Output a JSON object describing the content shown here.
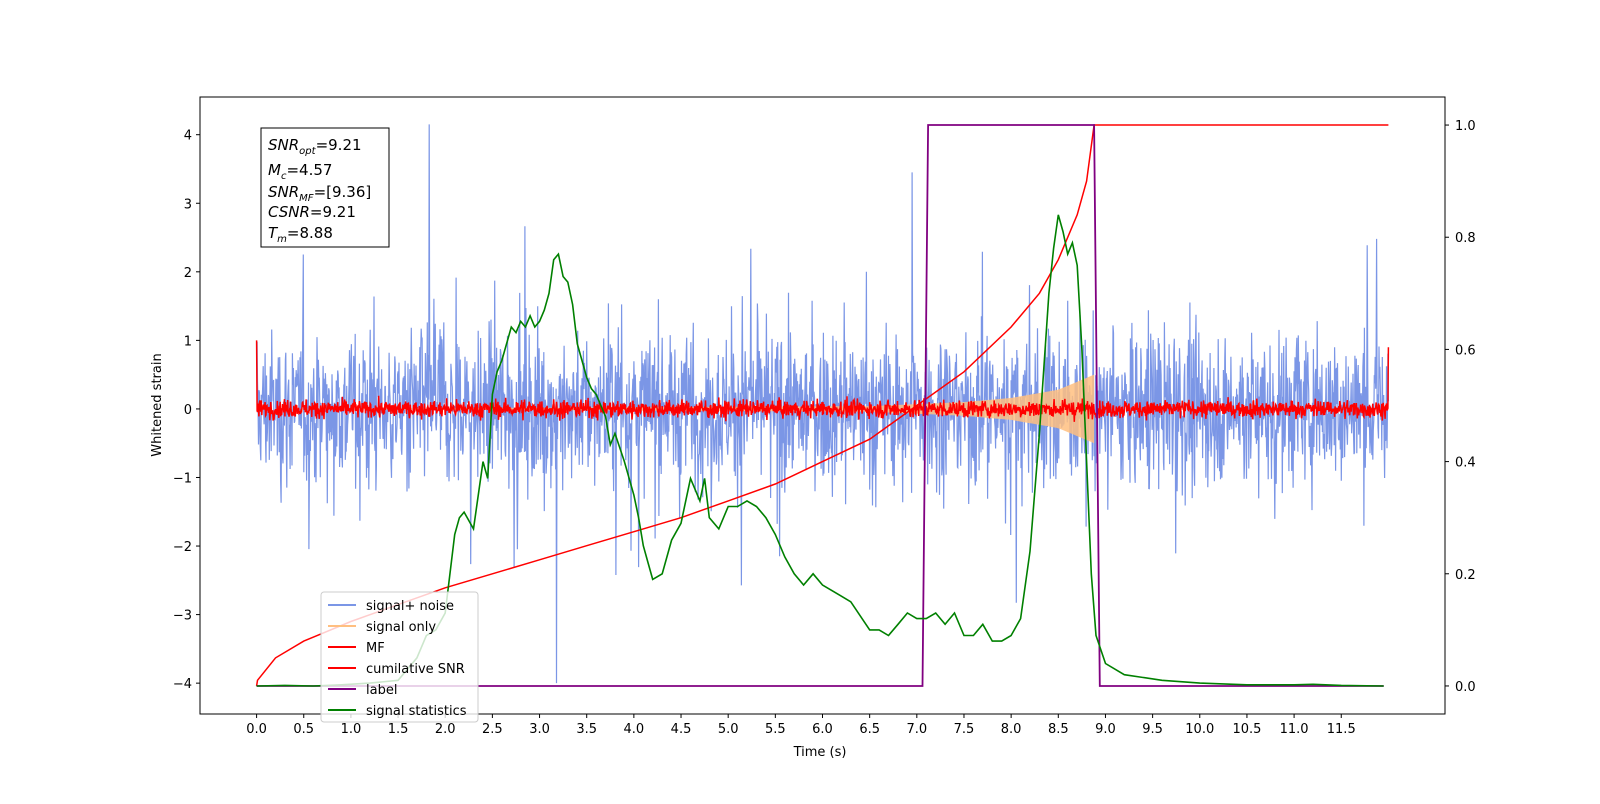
{
  "chart_data": {
    "type": "line",
    "xlabel": "Time (s)",
    "ylabel": "Whitened strain",
    "xlim": [
      -0.6,
      12.6
    ],
    "ylim": [
      -4.45,
      4.55
    ],
    "ylim_right": [
      -0.05,
      1.05
    ],
    "x_ticks": [
      0.0,
      0.5,
      1.0,
      1.5,
      2.0,
      2.5,
      3.0,
      3.5,
      4.0,
      4.5,
      5.0,
      5.5,
      6.0,
      6.5,
      7.0,
      7.5,
      8.0,
      8.5,
      9.0,
      9.5,
      10.0,
      10.5,
      11.0,
      11.5
    ],
    "x_tick_labels": [
      "0.0",
      "0.5",
      "1.0",
      "1.5",
      "2.0",
      "2.5",
      "3.0",
      "3.5",
      "4.0",
      "4.5",
      "5.0",
      "5.5",
      "6.0",
      "6.5",
      "7.0",
      "7.5",
      "8.0",
      "8.5",
      "9.0",
      "9.5",
      "10.0",
      "10.5",
      "11.0",
      "11.5"
    ],
    "y_ticks": [
      -4,
      -3,
      -2,
      -1,
      0,
      1,
      2,
      3,
      4
    ],
    "y_tick_labels": [
      "−4",
      "−3",
      "−2",
      "−1",
      "0",
      "1",
      "2",
      "3",
      "4"
    ],
    "y_right_ticks": [
      0.0,
      0.2,
      0.4,
      0.6,
      0.8,
      1.0
    ],
    "y_right_tick_labels": [
      "0.0",
      "0.2",
      "0.4",
      "0.6",
      "0.8",
      "1.0"
    ],
    "legend_position": "lower-left",
    "grid": false,
    "series": [
      {
        "name": "signal+ noise",
        "color": "#7b96e6",
        "axis": "left",
        "style": "noise",
        "x_range": [
          0.0,
          12.0
        ],
        "envelope_sigma": 0.95,
        "notable_peaks": [
          [
            1.83,
            4.15
          ],
          [
            3.18,
            -4.0
          ],
          [
            6.95,
            3.45
          ]
        ]
      },
      {
        "name": "signal only",
        "color": "#ffbf80",
        "axis": "left",
        "style": "chirp_envelope",
        "x": [
          0.0,
          6.5,
          7.0,
          7.5,
          8.0,
          8.5,
          8.88
        ],
        "amplitude": [
          0.0,
          0.04,
          0.07,
          0.1,
          0.16,
          0.28,
          0.5
        ]
      },
      {
        "name": "MF",
        "color": "#ff0000",
        "axis": "left",
        "style": "noise",
        "x_range": [
          0.0,
          12.0
        ],
        "envelope_sigma": 0.09,
        "edge_values": [
          1.0,
          0.9
        ]
      },
      {
        "name": "cumilative SNR",
        "color": "#ff0000",
        "axis": "right",
        "x": [
          0.0,
          0.01,
          0.2,
          0.5,
          1.0,
          1.5,
          2.0,
          2.5,
          3.0,
          3.5,
          4.0,
          4.5,
          5.0,
          5.5,
          6.0,
          6.5,
          7.0,
          7.5,
          8.0,
          8.3,
          8.5,
          8.7,
          8.8,
          8.88,
          12.0
        ],
        "values": [
          0.0,
          0.01,
          0.05,
          0.08,
          0.115,
          0.145,
          0.175,
          0.2,
          0.225,
          0.25,
          0.275,
          0.3,
          0.33,
          0.36,
          0.4,
          0.44,
          0.5,
          0.56,
          0.64,
          0.7,
          0.76,
          0.84,
          0.9,
          1.0,
          1.0
        ]
      },
      {
        "name": "label",
        "color": "#800080",
        "axis": "right",
        "x": [
          0.0,
          7.06,
          7.12,
          8.88,
          8.94,
          11.95
        ],
        "values": [
          0.0,
          0.0,
          1.0,
          1.0,
          0.0,
          0.0
        ]
      },
      {
        "name": "signal statistics",
        "color": "#008000",
        "axis": "right",
        "x": [
          0.0,
          0.3,
          0.6,
          0.9,
          1.2,
          1.5,
          1.7,
          1.8,
          1.9,
          2.0,
          2.1,
          2.15,
          2.2,
          2.3,
          2.4,
          2.45,
          2.5,
          2.55,
          2.6,
          2.7,
          2.75,
          2.8,
          2.85,
          2.9,
          2.95,
          3.0,
          3.05,
          3.1,
          3.15,
          3.2,
          3.25,
          3.3,
          3.35,
          3.4,
          3.45,
          3.5,
          3.55,
          3.6,
          3.7,
          3.75,
          3.8,
          3.9,
          4.0,
          4.05,
          4.1,
          4.15,
          4.2,
          4.3,
          4.4,
          4.5,
          4.6,
          4.7,
          4.75,
          4.8,
          4.9,
          5.0,
          5.1,
          5.2,
          5.3,
          5.4,
          5.5,
          5.6,
          5.7,
          5.8,
          5.9,
          6.0,
          6.1,
          6.2,
          6.3,
          6.5,
          6.6,
          6.7,
          6.8,
          6.9,
          7.0,
          7.1,
          7.2,
          7.3,
          7.4,
          7.5,
          7.6,
          7.7,
          7.8,
          7.9,
          8.0,
          8.1,
          8.2,
          8.3,
          8.4,
          8.45,
          8.5,
          8.55,
          8.6,
          8.65,
          8.7,
          8.75,
          8.8,
          8.85,
          8.9,
          9.0,
          9.2,
          9.6,
          10.0,
          10.5,
          11.0,
          11.2,
          11.5,
          11.95
        ],
        "values": [
          0.0,
          0.001,
          0.0,
          0.002,
          0.005,
          0.01,
          0.05,
          0.09,
          0.1,
          0.13,
          0.27,
          0.3,
          0.31,
          0.28,
          0.4,
          0.37,
          0.52,
          0.56,
          0.58,
          0.64,
          0.63,
          0.65,
          0.64,
          0.66,
          0.64,
          0.65,
          0.67,
          0.7,
          0.76,
          0.77,
          0.73,
          0.72,
          0.68,
          0.61,
          0.58,
          0.55,
          0.53,
          0.52,
          0.48,
          0.43,
          0.45,
          0.4,
          0.34,
          0.3,
          0.25,
          0.22,
          0.19,
          0.2,
          0.26,
          0.29,
          0.37,
          0.33,
          0.37,
          0.3,
          0.28,
          0.32,
          0.32,
          0.33,
          0.32,
          0.3,
          0.27,
          0.23,
          0.2,
          0.18,
          0.2,
          0.18,
          0.17,
          0.16,
          0.15,
          0.1,
          0.1,
          0.09,
          0.11,
          0.13,
          0.12,
          0.12,
          0.13,
          0.11,
          0.13,
          0.09,
          0.09,
          0.11,
          0.08,
          0.08,
          0.09,
          0.12,
          0.24,
          0.45,
          0.7,
          0.78,
          0.84,
          0.81,
          0.77,
          0.79,
          0.75,
          0.6,
          0.4,
          0.2,
          0.09,
          0.04,
          0.02,
          0.01,
          0.005,
          0.002,
          0.002,
          0.003,
          0.001,
          0.0
        ]
      }
    ]
  },
  "info_box": {
    "snr_opt": {
      "sym": "SNR",
      "sub": "opt",
      "value": "=9.21"
    },
    "mc": {
      "sym": "M",
      "sub": "c",
      "value": "=4.57"
    },
    "snr_mf": {
      "sym": "SNR",
      "sub": "MF",
      "value": "=[9.36]"
    },
    "csnr": {
      "sym": "CSNR",
      "value": "=9.21"
    },
    "tm": {
      "sym": "T",
      "sub": "m",
      "value": "=8.88"
    }
  }
}
